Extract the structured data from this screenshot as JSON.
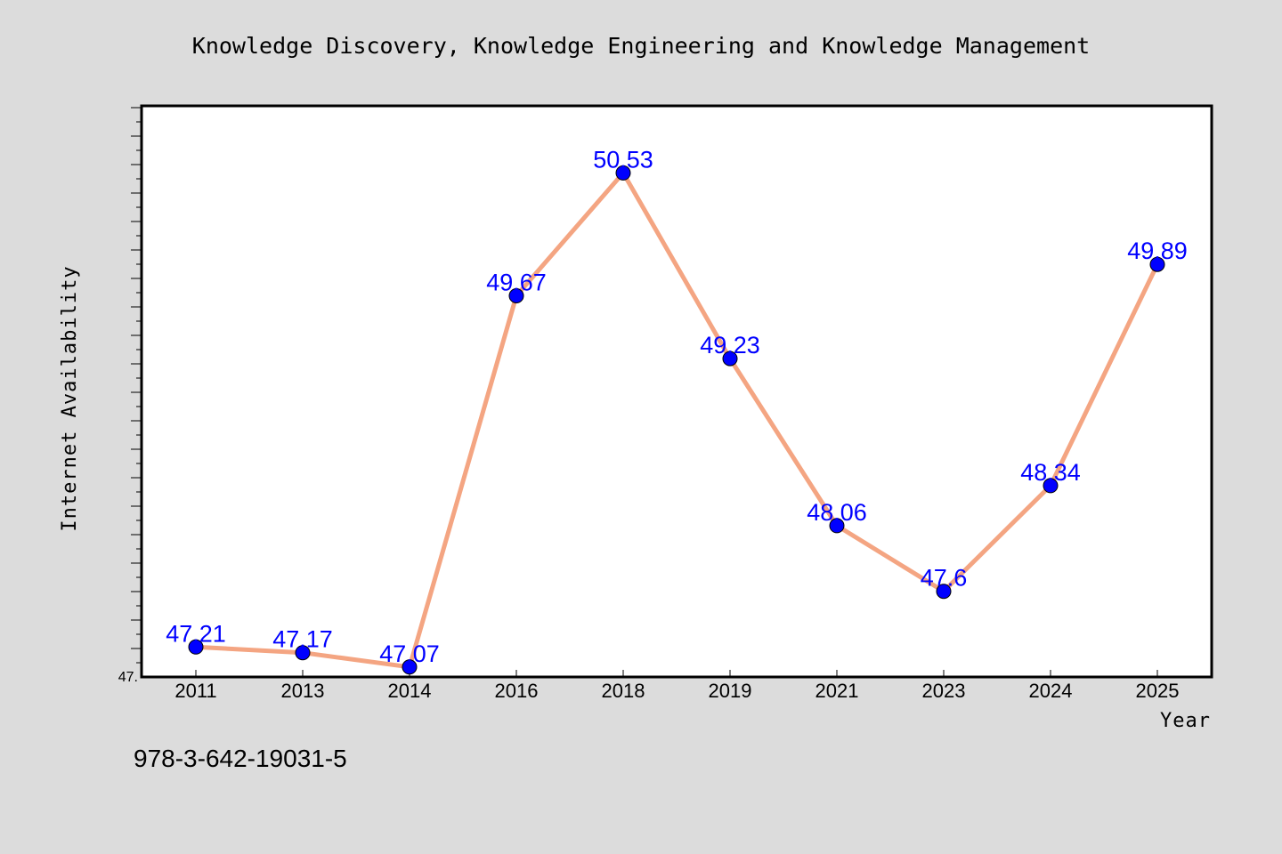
{
  "chart_data": {
    "type": "line",
    "title": "Knowledge Discovery, Knowledge Engineering and Knowledge Management",
    "xlabel": "Year",
    "ylabel": "Internet Availability",
    "categories": [
      "2011",
      "2013",
      "2014",
      "2016",
      "2018",
      "2019",
      "2021",
      "2023",
      "2024",
      "2025"
    ],
    "values": [
      47.21,
      47.17,
      47.07,
      49.67,
      50.53,
      49.23,
      48.06,
      47.6,
      48.34,
      49.89
    ],
    "data_labels": [
      "47.21",
      "47.17",
      "47.07",
      "49.67",
      "50.53",
      "49.23",
      "48.06",
      "47.6",
      "48.34",
      "49.89"
    ],
    "ylim": [
      47.0,
      51.0
    ],
    "y_tick_label": "47.",
    "grid": false,
    "line_color": "#f4a582",
    "marker_color": "#0000ff",
    "label_color": "#0000ff"
  },
  "footer": {
    "isbn": "978-3-642-19031-5"
  }
}
